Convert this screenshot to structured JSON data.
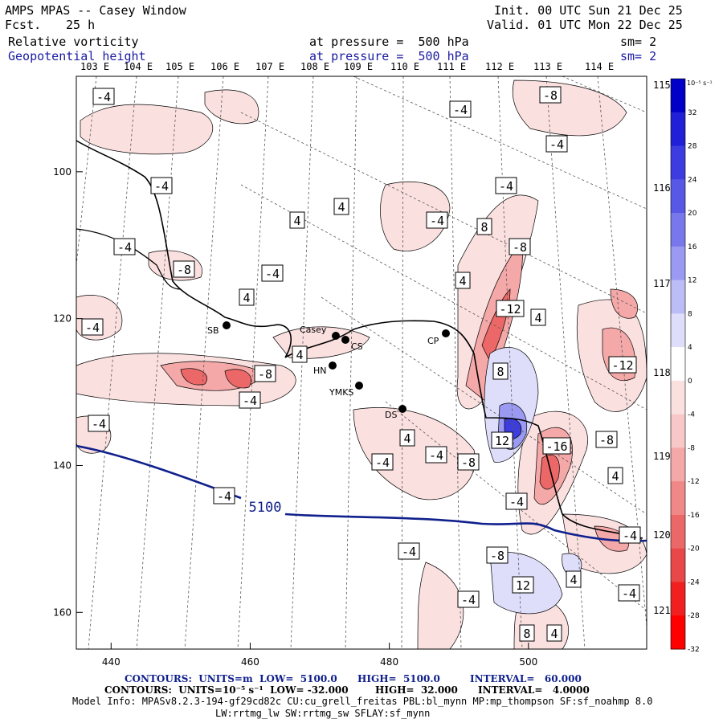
{
  "header": {
    "model": "AMPS MPAS -- Casey Window",
    "fcst_label": "Fcst.",
    "fcst_value": "25 h",
    "init": "Init. 00 UTC Sun 21 Dec 25",
    "valid": "Valid. 01 UTC Mon 22 Dec 25",
    "field1": "Relative vorticity",
    "field1_level": "at pressure =  500 hPa",
    "field1_sm": "sm= 2",
    "field2": "Geopotential height",
    "field2_level": "at pressure =  500 hPa",
    "field2_sm": "sm= 2"
  },
  "lon_labels_top": [
    "103 E",
    "104 E",
    "105 E",
    "106 E",
    "107 E",
    "108 E",
    "109 E",
    "110 E",
    "111 E",
    "112 E",
    "113 E",
    "114 E"
  ],
  "lon_labels_right": [
    "115 E",
    "116 E",
    "117 E",
    "118 E",
    "119 E",
    "120 E",
    "121 E"
  ],
  "stations": [
    {
      "name": "Casey"
    },
    {
      "name": "SB"
    },
    {
      "name": "CS"
    },
    {
      "name": "HN"
    },
    {
      "name": "YMKS"
    },
    {
      "name": "CP"
    },
    {
      "name": "DS"
    }
  ],
  "colorbar": {
    "units": "10⁻⁵ s⁻¹",
    "ticks": [
      "32",
      "28",
      "24",
      "20",
      "16",
      "12",
      "8",
      "4",
      "0",
      "-4",
      "-8",
      "-12",
      "-16",
      "-20",
      "-24",
      "-28",
      "-32"
    ],
    "colors": [
      "#0000c8",
      "#2020d8",
      "#3c3ce0",
      "#5858e6",
      "#7878ec",
      "#9a9af2",
      "#bcbcf6",
      "#dedefb",
      "#ffffff",
      "#fbe0e0",
      "#f8c8c8",
      "#f4a8a8",
      "#f08888",
      "#ec6868",
      "#e84848",
      "#f02020",
      "#ff0000"
    ]
  },
  "contour_labels": [
    "-4",
    "-8",
    "-12",
    "-16",
    "4",
    "8",
    "12",
    "5100"
  ],
  "footer": {
    "line1_a": "CONTOURS:  UNITS=m  LOW=  5100.0",
    "line1_b": "HIGH=  5100.0",
    "line1_c": "INTERVAL=   60.000",
    "line2_a": "CONTOURS:  UNITS=10⁻⁵ s⁻¹  LOW= -32.000",
    "line2_b": "HIGH=  32.000",
    "line2_c": "INTERVAL=   4.0000",
    "line3": "Model Info: MPASv8.2.3-194-gf29cd82c CU:cu_grell_freitas PBL:bl_mynn MP:mp_thompson SF:sf_noahmp 8.0",
    "line4": "LW:rrtmg_lw SW:rrtmg_sw SFLAY:sf_mynn"
  },
  "chart_data": {
    "type": "heatmap",
    "title": "Relative vorticity and Geopotential height at 500 hPa",
    "x_ticks": [
      440,
      460,
      480,
      500
    ],
    "y_ticks": [
      100,
      120,
      140,
      160
    ],
    "xlim": [
      435,
      517
    ],
    "ylim": [
      165,
      87
    ],
    "height_contour": {
      "value": 5100,
      "units": "m"
    },
    "vorticity": {
      "low": -32,
      "high": 32,
      "interval": 4,
      "units": "10^-5 s^-1"
    }
  },
  "colors": {
    "height_line": "#10208c",
    "title_blue": "#1a1aa0"
  }
}
